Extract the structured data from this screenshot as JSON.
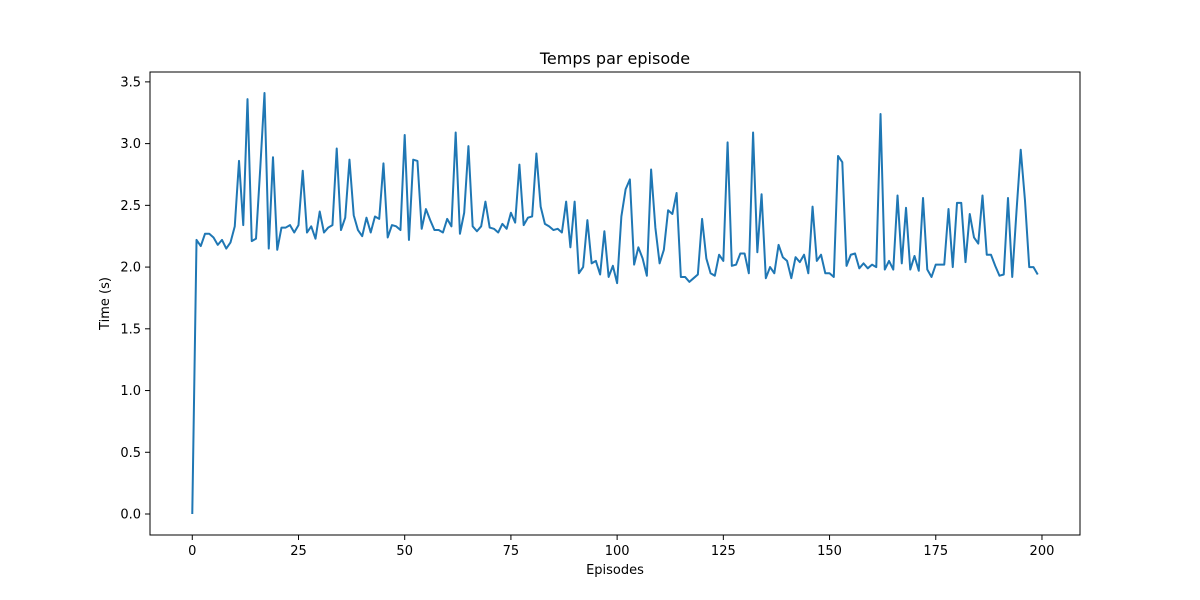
{
  "chart_data": {
    "type": "line",
    "title": "Temps par episode",
    "xlabel": "Episodes",
    "ylabel": "Time (s)",
    "xlim": [
      -9.95,
      208.95
    ],
    "ylim": [
      -0.17,
      3.58
    ],
    "x_ticks": [
      0,
      25,
      50,
      75,
      100,
      125,
      150,
      175,
      200
    ],
    "x_tick_labels": [
      "0",
      "25",
      "50",
      "75",
      "100",
      "125",
      "150",
      "175",
      "200"
    ],
    "y_ticks": [
      0.0,
      0.5,
      1.0,
      1.5,
      2.0,
      2.5,
      3.0,
      3.5
    ],
    "y_tick_labels": [
      "0.0",
      "0.5",
      "1.0",
      "1.5",
      "2.0",
      "2.5",
      "3.0",
      "3.5"
    ],
    "grid": false,
    "line_color": "#1f77b4",
    "series": [
      {
        "values": [
          0.0,
          2.22,
          2.17,
          2.27,
          2.27,
          2.24,
          2.18,
          2.22,
          2.15,
          2.2,
          2.33,
          2.86,
          2.34,
          3.36,
          2.21,
          2.23,
          2.8,
          3.41,
          2.15,
          2.89,
          2.14,
          2.32,
          2.32,
          2.34,
          2.28,
          2.34,
          2.78,
          2.28,
          2.33,
          2.23,
          2.45,
          2.28,
          2.32,
          2.34,
          2.96,
          2.3,
          2.4,
          2.87,
          2.42,
          2.3,
          2.25,
          2.4,
          2.28,
          2.41,
          2.39,
          2.84,
          2.24,
          2.34,
          2.33,
          2.3,
          3.07,
          2.22,
          2.87,
          2.86,
          2.31,
          2.47,
          2.38,
          2.3,
          2.3,
          2.28,
          2.39,
          2.33,
          3.09,
          2.27,
          2.44,
          2.98,
          2.33,
          2.29,
          2.33,
          2.53,
          2.32,
          2.31,
          2.28,
          2.35,
          2.31,
          2.44,
          2.36,
          2.83,
          2.34,
          2.4,
          2.41,
          2.92,
          2.49,
          2.35,
          2.33,
          2.3,
          2.31,
          2.28,
          2.53,
          2.16,
          2.53,
          1.95,
          2.0,
          2.38,
          2.03,
          2.05,
          1.94,
          2.29,
          1.92,
          2.01,
          1.87,
          2.41,
          2.63,
          2.71,
          2.02,
          2.16,
          2.07,
          1.93,
          2.79,
          2.32,
          2.03,
          2.14,
          2.46,
          2.43,
          2.6,
          1.92,
          1.92,
          1.88,
          1.91,
          1.94,
          2.39,
          2.07,
          1.95,
          1.93,
          2.1,
          2.05,
          3.01,
          2.01,
          2.02,
          2.11,
          2.11,
          1.95,
          3.09,
          2.12,
          2.59,
          1.91,
          2.0,
          1.95,
          2.18,
          2.08,
          2.05,
          1.91,
          2.08,
          2.04,
          2.1,
          1.95,
          2.49,
          2.05,
          2.1,
          1.95,
          1.95,
          1.92,
          2.9,
          2.85,
          2.01,
          2.1,
          2.11,
          1.99,
          2.03,
          1.99,
          2.02,
          2.0,
          3.24,
          1.98,
          2.05,
          1.98,
          2.58,
          2.03,
          2.48,
          1.98,
          2.09,
          1.97,
          2.56,
          1.98,
          1.92,
          2.02,
          2.02,
          2.02,
          2.47,
          2.0,
          2.52,
          2.52,
          2.04,
          2.43,
          2.24,
          2.19,
          2.58,
          2.1,
          2.1,
          2.01,
          1.93,
          1.94,
          2.56,
          1.92,
          2.45,
          2.95,
          2.54,
          2.0,
          2.0,
          1.94
        ]
      }
    ]
  }
}
